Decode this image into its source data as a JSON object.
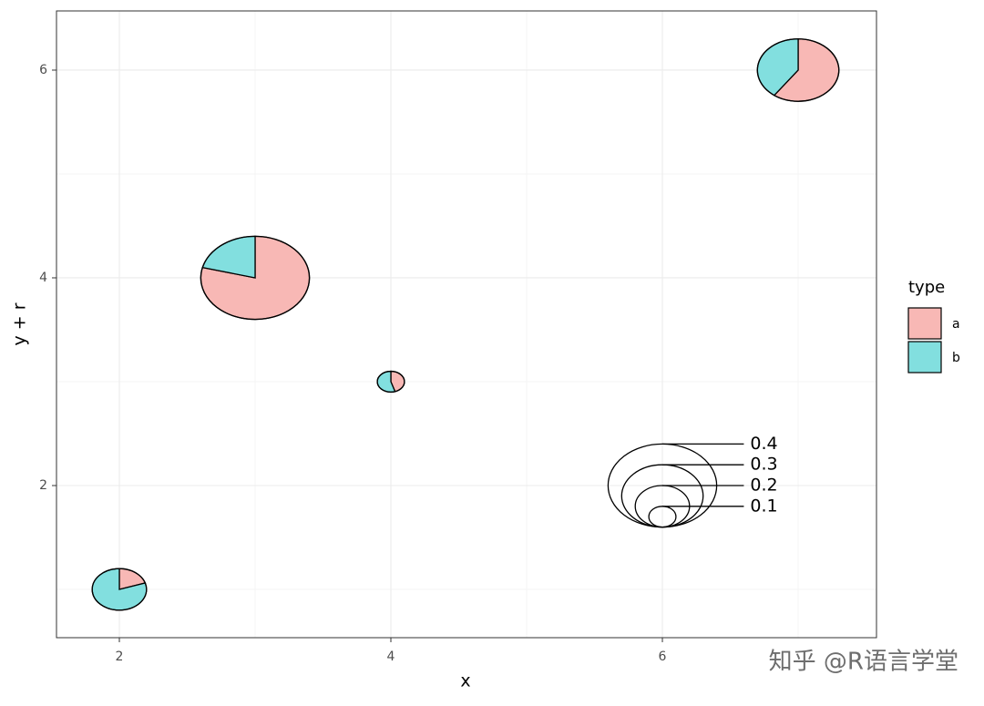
{
  "chart_data": {
    "type": "scatterpie",
    "x_label": "x",
    "y_label": "y + r",
    "x": [
      2,
      3,
      4,
      7
    ],
    "y": [
      1,
      4,
      3,
      6
    ],
    "r": [
      0.2,
      0.4,
      0.1,
      0.3
    ],
    "series": [
      {
        "name": "a",
        "color": "#f8b8b5",
        "values": [
          0.2,
          0.79,
          0.45,
          0.6
        ]
      },
      {
        "name": "b",
        "color": "#82dfdf",
        "values": [
          0.8,
          0.21,
          0.55,
          0.4
        ]
      }
    ],
    "legend_title": "type",
    "legend_position": "right",
    "size_legend": {
      "x": 6,
      "y": 2,
      "values": [
        0.1,
        0.2,
        0.3,
        0.4
      ]
    },
    "xlim": [
      1.537,
      7.577
    ],
    "ylim": [
      0.535,
      6.57
    ],
    "xticks": [
      2,
      4,
      6
    ],
    "yticks": [
      2,
      4,
      6
    ],
    "minor_xticks": [
      3,
      5,
      7
    ],
    "minor_yticks": [
      1,
      3,
      5
    ],
    "grid": true,
    "watermark": "知乎 @R语言学堂"
  }
}
